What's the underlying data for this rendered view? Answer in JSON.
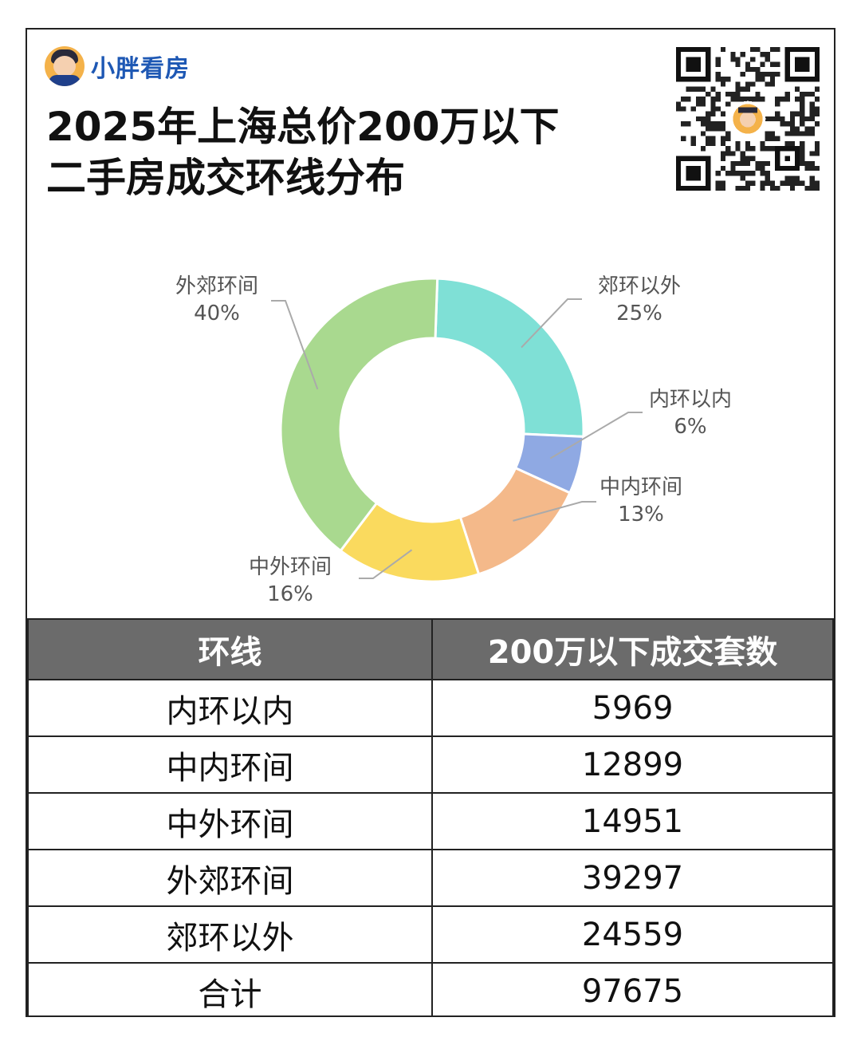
{
  "brand": {
    "name": "小胖看房",
    "logo_icon": "avatar-cartoon-icon"
  },
  "title": {
    "line1": "2025年上海总价200万以下",
    "line2": "二手房成交环线分布"
  },
  "qr": {
    "icon": "qr-code-icon"
  },
  "chart_data": {
    "type": "pie",
    "donut": true,
    "labels": [
      "郊环以外",
      "内环以内",
      "中内环间",
      "中外环间",
      "外郊环间"
    ],
    "percent_labels": [
      "25%",
      "6%",
      "13%",
      "16%",
      "40%"
    ],
    "values": [
      24559,
      5969,
      12899,
      14951,
      39297
    ],
    "colors": [
      "#7fe0d6",
      "#8fa9e3",
      "#f4b98a",
      "#fada5e",
      "#a9d98f"
    ],
    "legend": "none"
  },
  "table": {
    "headers": [
      "环线",
      "200万以下成交套数"
    ],
    "rows": [
      [
        "内环以内",
        "5969"
      ],
      [
        "中内环间",
        "12899"
      ],
      [
        "中外环间",
        "14951"
      ],
      [
        "外郊环间",
        "39297"
      ],
      [
        "郊环以外",
        "24559"
      ],
      [
        "合计",
        "97675"
      ]
    ]
  }
}
